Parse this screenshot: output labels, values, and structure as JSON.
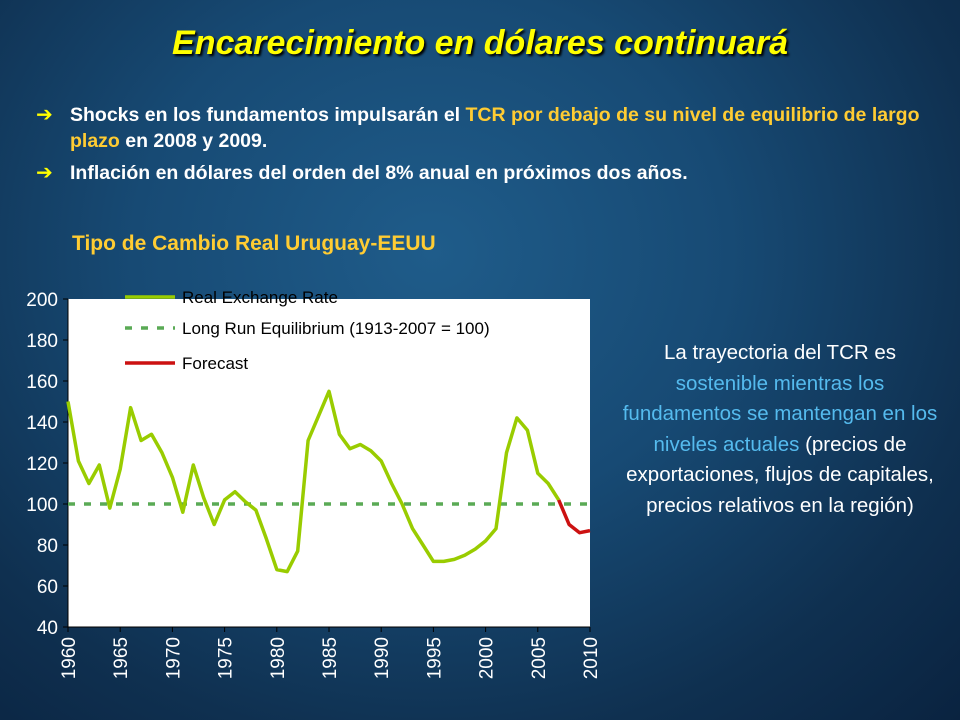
{
  "title": "Encarecimiento en dólares continuará",
  "bullets": [
    {
      "arrow": "è",
      "p1": "Shocks en los fundamentos impulsarán el ",
      "p2": "TCR por debajo de su nivel de equilibrio de largo plazo",
      "p3": " en 2008 y 2009."
    },
    {
      "arrow": "è",
      "text": "Inflación en dólares del orden del 8% anual en próximos dos años."
    }
  ],
  "note": {
    "p1": "La trayectoria del TCR es",
    "p2": "sostenible mientras los fundamentos se mantengan en los niveles actuales",
    "p3": " (precios de exportaciones, flujos de capitales, precios relativos en la región)"
  },
  "colors": {
    "title": "#ffff00",
    "highlight": "#ffcc33",
    "rer": "#99cc00",
    "equilibrium": "#5aaa55",
    "forecast": "#cc1111",
    "note_highlight": "#55bbee"
  },
  "chart_data": {
    "type": "line",
    "title": "Tipo de Cambio Real Uruguay-EEUU",
    "ylim": [
      40,
      200
    ],
    "xlim": [
      1960,
      2010
    ],
    "yticks": [
      40,
      60,
      80,
      100,
      120,
      140,
      160,
      180,
      200
    ],
    "xticks": [
      1960,
      1965,
      1970,
      1975,
      1980,
      1985,
      1990,
      1995,
      2000,
      2005,
      2010
    ],
    "grid": false,
    "legend_position": "top-left",
    "series": [
      {
        "name": "Real Exchange Rate",
        "style": "solid",
        "x": [
          1960,
          1961,
          1962,
          1963,
          1964,
          1965,
          1966,
          1967,
          1968,
          1969,
          1970,
          1971,
          1972,
          1973,
          1974,
          1975,
          1976,
          1977,
          1978,
          1979,
          1980,
          1981,
          1982,
          1983,
          1984,
          1985,
          1986,
          1987,
          1988,
          1989,
          1990,
          1991,
          1992,
          1993,
          1994,
          1995,
          1996,
          1997,
          1998,
          1999,
          2000,
          2001,
          2002,
          2003,
          2004,
          2005,
          2006,
          2007
        ],
        "y": [
          150,
          121,
          110,
          119,
          98,
          117,
          147,
          131,
          134,
          125,
          113,
          96,
          119,
          103,
          90,
          102,
          106,
          101,
          97,
          83,
          68,
          67,
          77,
          131,
          143,
          155,
          134,
          127,
          129,
          126,
          121,
          110,
          100,
          88,
          80,
          72,
          72,
          73,
          75,
          78,
          82,
          88,
          125,
          142,
          136,
          115,
          110,
          102
        ]
      },
      {
        "name": "Long Run Equilibrium (1913-2007 = 100)",
        "style": "dashed",
        "x": [
          1960,
          2010
        ],
        "y": [
          100,
          100
        ]
      },
      {
        "name": "Forecast",
        "style": "solid",
        "x": [
          2007,
          2008,
          2009,
          2010
        ],
        "y": [
          102,
          90,
          86,
          87
        ]
      }
    ]
  }
}
